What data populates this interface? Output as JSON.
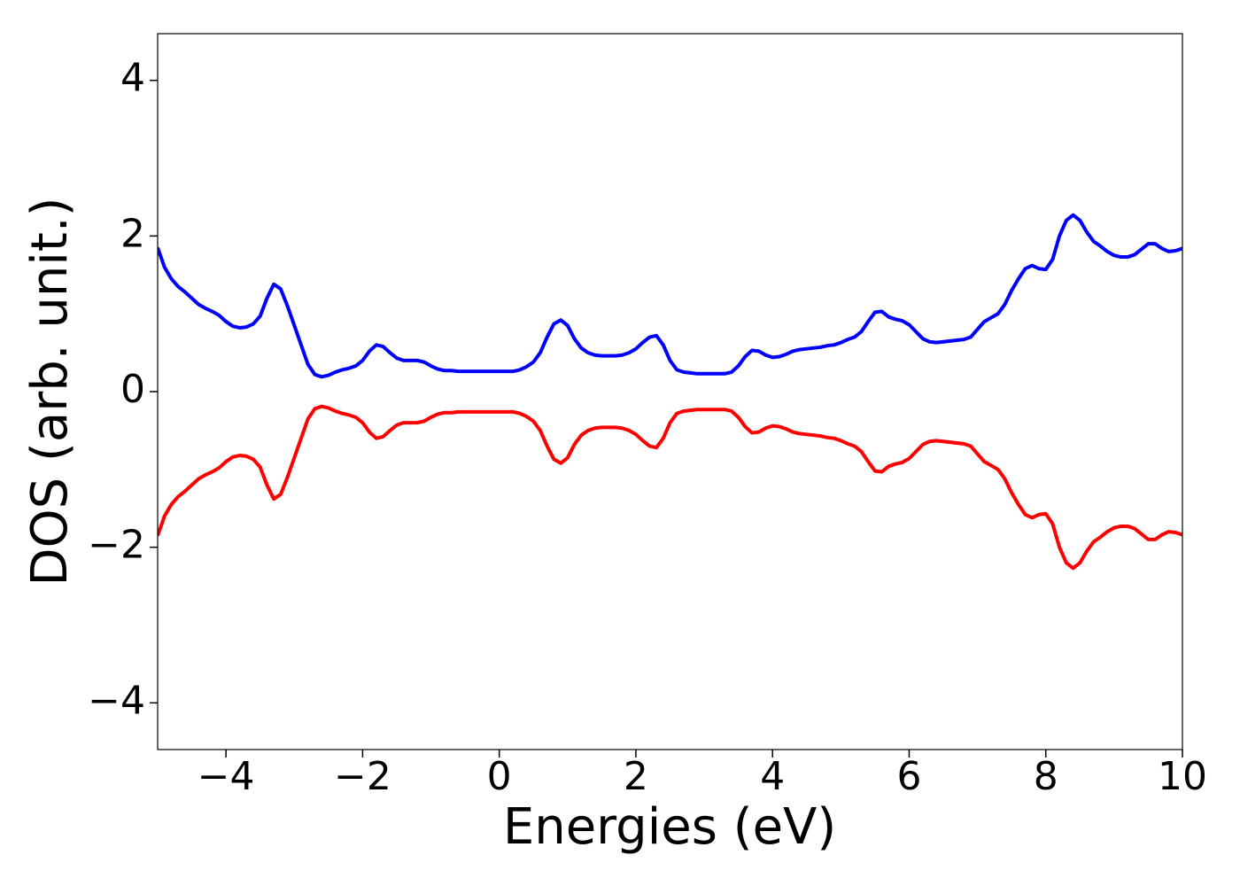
{
  "chart_data": {
    "type": "line",
    "x_label": "Energies (eV)",
    "y_label": "DOS (arb. unit.)",
    "x": [
      -5,
      -4.9,
      -4.8,
      -4.7,
      -4.6,
      -4.5,
      -4.4,
      -4.3,
      -4.2,
      -4.1,
      -4,
      -3.9,
      -3.8,
      -3.7,
      -3.6,
      -3.5,
      -3.4,
      -3.3,
      -3.2,
      -3.1,
      -3,
      -2.9,
      -2.8,
      -2.7,
      -2.6,
      -2.5,
      -2.4,
      -2.3,
      -2.2,
      -2.1,
      -2,
      -1.9,
      -1.8,
      -1.7,
      -1.6,
      -1.5,
      -1.4,
      -1.3,
      -1.2,
      -1.1,
      -1,
      -0.9,
      -0.8,
      -0.7,
      -0.6,
      -0.5,
      -0.4,
      -0.3,
      -0.2,
      -0.1,
      0,
      0.1,
      0.2,
      0.3,
      0.4,
      0.5,
      0.6,
      0.7,
      0.8,
      0.9,
      1,
      1.1,
      1.2,
      1.3,
      1.4,
      1.5,
      1.6,
      1.7,
      1.8,
      1.9,
      2,
      2.1,
      2.2,
      2.3,
      2.4,
      2.5,
      2.6,
      2.7,
      2.8,
      2.9,
      3,
      3.1,
      3.2,
      3.3,
      3.4,
      3.5,
      3.6,
      3.7,
      3.8,
      3.9,
      4,
      4.1,
      4.2,
      4.3,
      4.4,
      4.5,
      4.6,
      4.7,
      4.8,
      4.9,
      5,
      5.1,
      5.2,
      5.3,
      5.4,
      5.5,
      5.6,
      5.7,
      5.8,
      5.9,
      6,
      6.1,
      6.2,
      6.3,
      6.4,
      6.5,
      6.6,
      6.7,
      6.8,
      6.9,
      7,
      7.1,
      7.2,
      7.3,
      7.4,
      7.5,
      7.6,
      7.7,
      7.8,
      7.9,
      8,
      8.1,
      8.2,
      8.3,
      8.4,
      8.5,
      8.6,
      8.7,
      8.8,
      8.9,
      9,
      9.1,
      9.2,
      9.3,
      9.4,
      9.5,
      9.6,
      9.7,
      9.8,
      9.9,
      10
    ],
    "series": [
      {
        "color": "#0000ff",
        "values": [
          1.85,
          1.6,
          1.45,
          1.35,
          1.28,
          1.2,
          1.12,
          1.07,
          1.03,
          0.98,
          0.9,
          0.84,
          0.82,
          0.83,
          0.87,
          0.97,
          1.2,
          1.38,
          1.32,
          1.1,
          0.85,
          0.6,
          0.35,
          0.22,
          0.19,
          0.21,
          0.25,
          0.28,
          0.3,
          0.33,
          0.4,
          0.52,
          0.6,
          0.58,
          0.5,
          0.43,
          0.4,
          0.4,
          0.4,
          0.38,
          0.33,
          0.29,
          0.27,
          0.27,
          0.26,
          0.26,
          0.26,
          0.26,
          0.26,
          0.26,
          0.26,
          0.26,
          0.26,
          0.28,
          0.32,
          0.38,
          0.5,
          0.7,
          0.87,
          0.92,
          0.85,
          0.68,
          0.56,
          0.5,
          0.47,
          0.46,
          0.46,
          0.46,
          0.47,
          0.5,
          0.55,
          0.63,
          0.7,
          0.72,
          0.6,
          0.4,
          0.28,
          0.25,
          0.24,
          0.23,
          0.23,
          0.23,
          0.23,
          0.23,
          0.25,
          0.33,
          0.45,
          0.53,
          0.52,
          0.47,
          0.44,
          0.45,
          0.48,
          0.52,
          0.54,
          0.55,
          0.56,
          0.57,
          0.59,
          0.6,
          0.63,
          0.67,
          0.7,
          0.77,
          0.9,
          1.02,
          1.03,
          0.96,
          0.93,
          0.91,
          0.86,
          0.77,
          0.68,
          0.64,
          0.63,
          0.64,
          0.65,
          0.66,
          0.67,
          0.7,
          0.8,
          0.9,
          0.95,
          1.0,
          1.12,
          1.3,
          1.45,
          1.58,
          1.62,
          1.58,
          1.57,
          1.7,
          2.0,
          2.2,
          2.27,
          2.2,
          2.05,
          1.93,
          1.87,
          1.8,
          1.75,
          1.73,
          1.73,
          1.76,
          1.83,
          1.9,
          1.9,
          1.84,
          1.8,
          1.81,
          1.84
        ]
      },
      {
        "color": "#ff0000",
        "values": [
          -1.85,
          -1.6,
          -1.45,
          -1.35,
          -1.28,
          -1.2,
          -1.12,
          -1.07,
          -1.03,
          -0.98,
          -0.9,
          -0.84,
          -0.82,
          -0.83,
          -0.87,
          -0.97,
          -1.2,
          -1.38,
          -1.32,
          -1.1,
          -0.85,
          -0.6,
          -0.35,
          -0.22,
          -0.19,
          -0.21,
          -0.25,
          -0.28,
          -0.3,
          -0.33,
          -0.4,
          -0.52,
          -0.6,
          -0.58,
          -0.5,
          -0.43,
          -0.4,
          -0.4,
          -0.4,
          -0.38,
          -0.33,
          -0.29,
          -0.27,
          -0.27,
          -0.26,
          -0.26,
          -0.26,
          -0.26,
          -0.26,
          -0.26,
          -0.26,
          -0.26,
          -0.26,
          -0.28,
          -0.32,
          -0.38,
          -0.5,
          -0.7,
          -0.87,
          -0.92,
          -0.85,
          -0.68,
          -0.56,
          -0.5,
          -0.47,
          -0.46,
          -0.46,
          -0.46,
          -0.47,
          -0.5,
          -0.55,
          -0.63,
          -0.7,
          -0.72,
          -0.6,
          -0.4,
          -0.28,
          -0.25,
          -0.24,
          -0.23,
          -0.23,
          -0.23,
          -0.23,
          -0.23,
          -0.25,
          -0.33,
          -0.45,
          -0.53,
          -0.52,
          -0.47,
          -0.44,
          -0.45,
          -0.48,
          -0.52,
          -0.54,
          -0.55,
          -0.56,
          -0.57,
          -0.59,
          -0.6,
          -0.63,
          -0.67,
          -0.7,
          -0.77,
          -0.9,
          -1.02,
          -1.03,
          -0.96,
          -0.93,
          -0.91,
          -0.86,
          -0.77,
          -0.68,
          -0.64,
          -0.63,
          -0.64,
          -0.65,
          -0.66,
          -0.67,
          -0.7,
          -0.8,
          -0.9,
          -0.95,
          -1.0,
          -1.12,
          -1.3,
          -1.45,
          -1.58,
          -1.62,
          -1.58,
          -1.57,
          -1.7,
          -2.0,
          -2.2,
          -2.27,
          -2.2,
          -2.05,
          -1.93,
          -1.87,
          -1.8,
          -1.75,
          -1.73,
          -1.73,
          -1.76,
          -1.83,
          -1.9,
          -1.9,
          -1.84,
          -1.8,
          -1.81,
          -1.84
        ]
      }
    ],
    "xlim": [
      -5,
      10
    ],
    "xticks": [
      {
        "value": -4,
        "label": "−4"
      },
      {
        "value": -2,
        "label": "−2"
      },
      0,
      2,
      4,
      6,
      8,
      10
    ],
    "ylim": [
      -4.6,
      4.6
    ],
    "yticks": [
      {
        "value": -4,
        "label": "−4"
      },
      {
        "value": -2,
        "label": "−2"
      },
      0,
      2,
      4
    ],
    "grid": false
  }
}
